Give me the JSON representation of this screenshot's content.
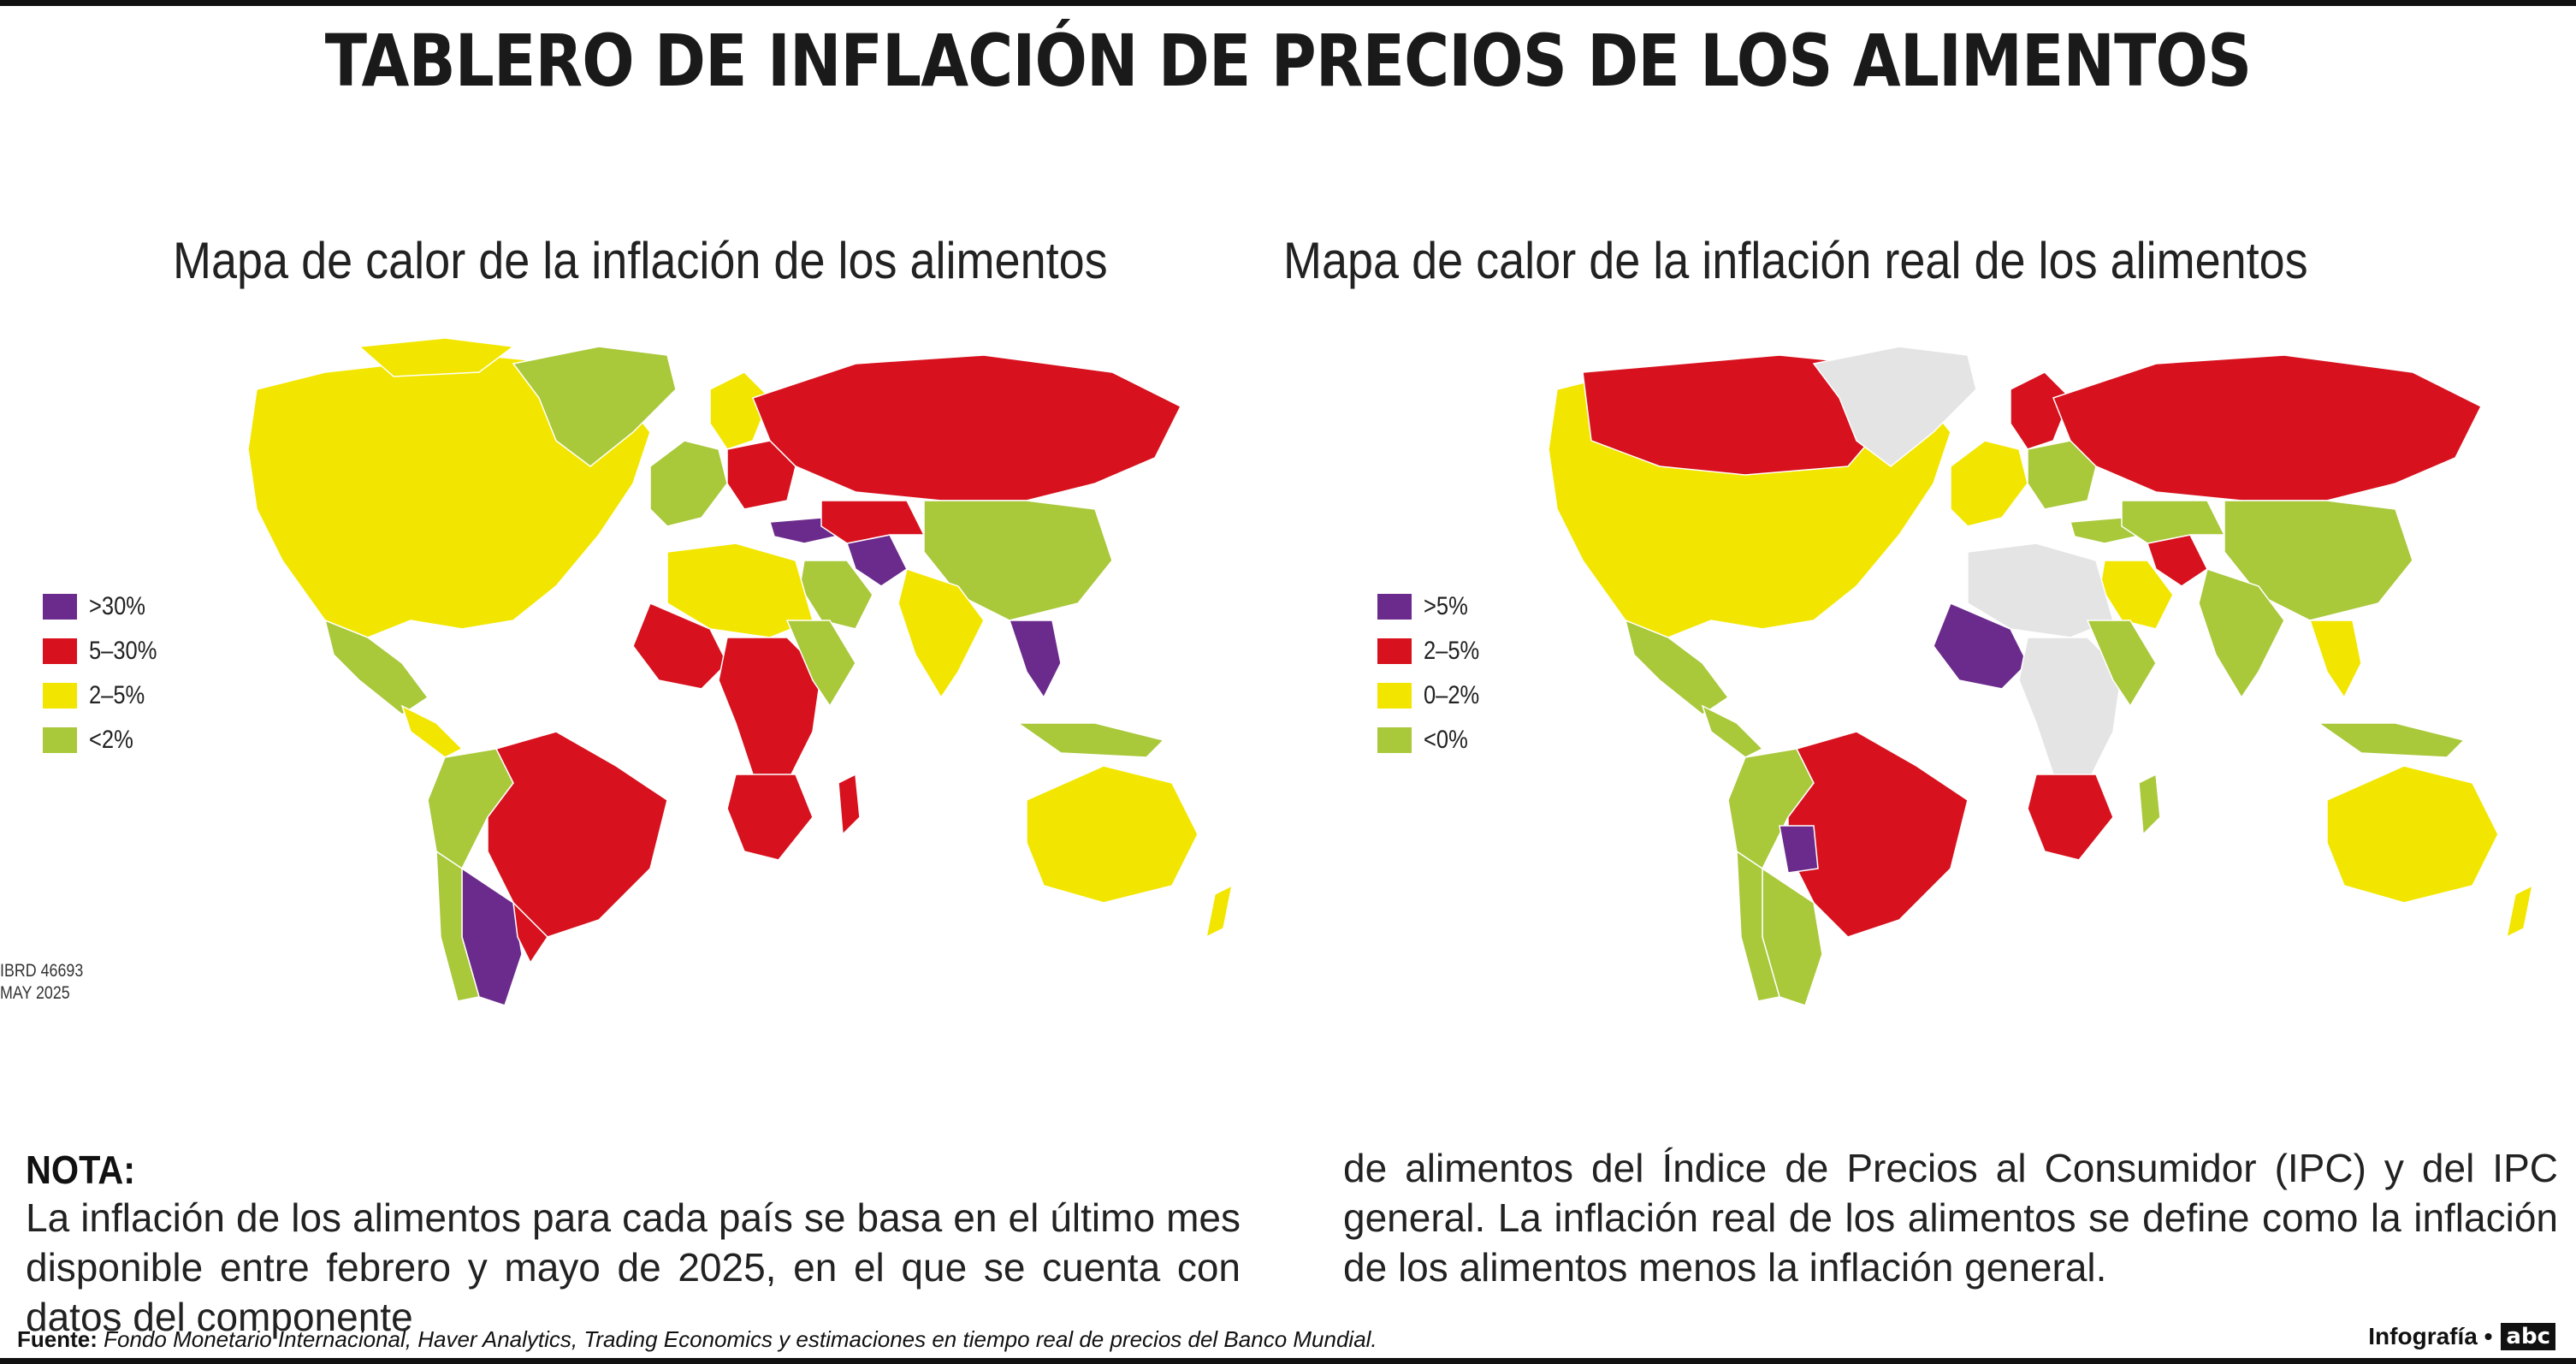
{
  "title": "TABLERO DE INFLACIÓN DE PRECIOS DE LOS ALIMENTOS",
  "maps": [
    {
      "title": "Mapa de calor de la inflación de los alimentos",
      "legend": [
        {
          "label": ">30%",
          "color": "#6b2b8c"
        },
        {
          "label": "5–30%",
          "color": "#d7121e"
        },
        {
          "label": "2–5%",
          "color": "#f2e600"
        },
        {
          "label": "<2%",
          "color": "#a9c83a"
        }
      ]
    },
    {
      "title": "Mapa de calor de la inflación real de los alimentos",
      "legend": [
        {
          "label": ">5%",
          "color": "#6b2b8c"
        },
        {
          "label": "2–5%",
          "color": "#d7121e"
        },
        {
          "label": "0–2%",
          "color": "#f2e600"
        },
        {
          "label": "<0%",
          "color": "#a9c83a"
        }
      ]
    }
  ],
  "map_credit": {
    "line1": "IBRD 46693",
    "line2": "MAY 2025"
  },
  "note": {
    "title": "NOTA:",
    "text_left": "La inflación de los alimentos para cada país se basa en el último mes disponible entre febrero y mayo de 2025, en el que se cuenta con datos del componente",
    "text_right": "de alimentos del Índice de Precios al Consumidor (IPC) y del IPC general. La inflación real de los alimentos se define como la inflación de los alimentos menos la inflación general."
  },
  "footer": {
    "source_label": "Fuente:",
    "source_text": "Fondo Monetario Internacional, Haver Analytics, Trading Economics y estimaciones en tiempo real de precios del Banco Mundial.",
    "credit": "Infografía •",
    "logo": "abc"
  },
  "colors": {
    "no_data": "#e4e4e4"
  }
}
